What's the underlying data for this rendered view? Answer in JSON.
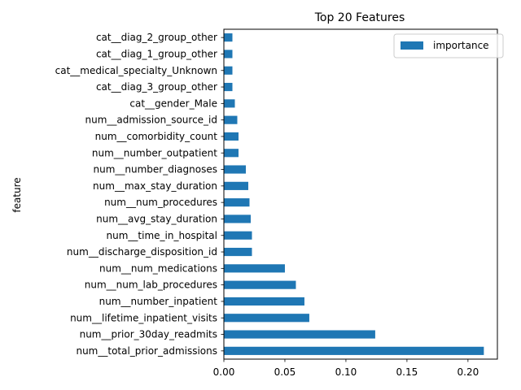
{
  "chart_data": {
    "type": "bar",
    "orientation": "horizontal",
    "title": "Top 20 Features",
    "xlabel": "",
    "ylabel": "feature",
    "xlim": [
      0,
      0.2241
    ],
    "xticks": [
      "0.00",
      "0.05",
      "0.10",
      "0.15",
      "0.20"
    ],
    "grid": false,
    "legend_position": "top-right",
    "bar_color": "#1f77b4",
    "series": [
      {
        "name": "importance",
        "categories": [
          "num__total_prior_admissions",
          "num__prior_30day_readmits",
          "num__lifetime_inpatient_visits",
          "num__number_inpatient",
          "num__num_lab_procedures",
          "num__num_medications",
          "num__discharge_disposition_id",
          "num__time_in_hospital",
          "num__avg_stay_duration",
          "num__num_procedures",
          "num__max_stay_duration",
          "num__number_diagnoses",
          "num__number_outpatient",
          "num__comorbidity_count",
          "num__admission_source_id",
          "cat__gender_Male",
          "cat__diag_3_group_other",
          "cat__medical_specialty_Unknown",
          "cat__diag_1_group_other",
          "cat__diag_2_group_other"
        ],
        "values": [
          0.213,
          0.124,
          0.07,
          0.066,
          0.059,
          0.05,
          0.023,
          0.023,
          0.022,
          0.021,
          0.02,
          0.018,
          0.012,
          0.012,
          0.011,
          0.009,
          0.007,
          0.007,
          0.007,
          0.007
        ]
      }
    ]
  }
}
